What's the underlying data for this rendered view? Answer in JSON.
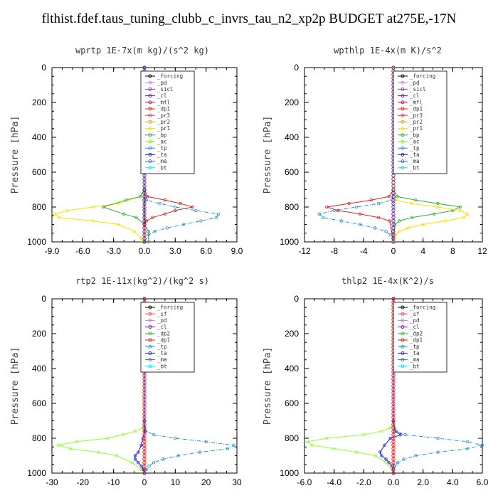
{
  "title": "flthist.fdef.taus_tuning_clubb_c_invrs_tau_n2_xp2p  BUDGET at275E,-17N",
  "colors": {
    "forcing": "#000000",
    "pd": "#c080e0",
    "sicl": "#8040c0",
    "cl": "#6020a0",
    "mfl": "#a01080",
    "dp1": "#e02020",
    "pr3": "#ff3030",
    "pr2": "#ff9900",
    "pr1": "#ffdd00",
    "bp": "#30b030",
    "ac": "#99e010",
    "tp": "#2090d0",
    "ta": "#2020e0",
    "ma": "#3070c0",
    "bt": "#00e0ff",
    "sf": "#ff4040",
    "dp2": "#30c030",
    "dp1b": "#90ff30"
  },
  "chart_data": [
    {
      "type": "line",
      "title": "wprtp  1E-7x(m kg)/(s^2 kg)",
      "ylabel": "Pressure [hPa]",
      "xlim": [
        -9,
        9
      ],
      "ylim": [
        1000,
        0
      ],
      "xticks": [
        -9,
        -6,
        -3,
        0,
        3,
        6,
        9
      ],
      "xtick_labels": [
        "-9.0",
        "-6.0",
        "-3.0",
        "0.0",
        "3.0",
        "6.0",
        "9.0"
      ],
      "yticks": [
        0,
        200,
        400,
        600,
        800,
        1000
      ],
      "ytick_labels": [
        "0",
        "200",
        "400",
        "600",
        "800",
        "1000"
      ],
      "legend": [
        "_forcing",
        "_pd",
        "_sicl",
        "_cl",
        "_mfl",
        "_dp1",
        "_pr3",
        "_pr2",
        "_pr1",
        "_bp",
        "_ac",
        "_tp",
        "_ta",
        "_ma",
        "_bt"
      ],
      "series": [
        {
          "key": "forcing",
          "p": [
            0,
            700,
            1000
          ],
          "x": [
            0,
            0,
            0
          ]
        },
        {
          "key": "pr1",
          "p": [
            0,
            700,
            740,
            780,
            800,
            820,
            840,
            860,
            880,
            900,
            940,
            980,
            1000
          ],
          "x": [
            0,
            0,
            -0.4,
            -2.5,
            -5.0,
            -7.5,
            -8.7,
            -8.3,
            -5.0,
            -2.5,
            -1.0,
            -0.3,
            -0.2
          ]
        },
        {
          "key": "bp",
          "p": [
            0,
            700,
            740,
            760,
            800,
            840,
            860,
            900,
            940,
            1000
          ],
          "x": [
            0,
            0,
            -0.4,
            -1.8,
            -4.0,
            -2.0,
            -0.8,
            0,
            0.4,
            0.4
          ]
        },
        {
          "key": "dp1",
          "p": [
            0,
            700,
            740,
            760,
            780,
            800,
            820,
            840,
            860,
            880,
            900,
            1000
          ],
          "x": [
            0,
            0,
            0.3,
            2.0,
            3.5,
            4.7,
            3.0,
            2.0,
            0.8,
            0.2,
            0,
            0
          ]
        },
        {
          "key": "tp",
          "p": [
            0,
            700,
            760,
            780,
            800,
            820,
            840,
            860,
            880,
            900,
            920,
            940,
            960,
            1000
          ],
          "x": [
            0,
            0,
            0.2,
            1.5,
            3.0,
            5.0,
            7.2,
            7.0,
            5.5,
            3.8,
            2.2,
            1.0,
            0.4,
            0
          ]
        }
      ]
    },
    {
      "type": "line",
      "title": "wpthlp  1E-4x(m K)/s^2",
      "ylabel": "Pressure [hPa]",
      "xlim": [
        -12,
        12
      ],
      "ylim": [
        1000,
        0
      ],
      "xticks": [
        -12,
        -8,
        -4,
        0,
        4,
        8,
        12
      ],
      "xtick_labels": [
        "-12",
        "-8",
        "-4",
        "0",
        "4",
        "8",
        "12"
      ],
      "yticks": [
        0,
        200,
        400,
        600,
        800,
        1000
      ],
      "ytick_labels": [
        "0",
        "200",
        "400",
        "600",
        "800",
        "1000"
      ],
      "legend": [
        "_forcing",
        "_pd",
        "_sicl",
        "_cl",
        "_mfl",
        "_dp1",
        "_pr3",
        "_pr2",
        "_pr1",
        "_bp",
        "_ac",
        "_tp",
        "_ta",
        "_ma",
        "_bt"
      ],
      "series": [
        {
          "key": "pd",
          "p": [
            0,
            700,
            1000
          ],
          "x": [
            0,
            0,
            0
          ]
        },
        {
          "key": "dp1",
          "p": [
            0,
            700,
            740,
            760,
            780,
            800,
            820,
            840,
            860,
            880,
            1000
          ],
          "x": [
            0,
            0,
            -0.6,
            -3.0,
            -6.0,
            -9.0,
            -7.5,
            -4.5,
            -2.0,
            -0.5,
            0
          ]
        },
        {
          "key": "tp",
          "p": [
            0,
            700,
            760,
            780,
            800,
            820,
            840,
            860,
            880,
            900,
            920,
            940,
            960,
            1000
          ],
          "x": [
            0,
            0,
            -0.2,
            -2.0,
            -5.0,
            -8.0,
            -10.0,
            -9.5,
            -7.0,
            -4.5,
            -2.5,
            -1.0,
            -0.4,
            0
          ]
        },
        {
          "key": "bp",
          "p": [
            0,
            700,
            740,
            760,
            780,
            800,
            820,
            840,
            860,
            880,
            900,
            1000
          ],
          "x": [
            0,
            0,
            0.5,
            3.0,
            6.0,
            9.0,
            8.0,
            5.5,
            2.5,
            0.8,
            0.2,
            0
          ]
        },
        {
          "key": "pr1",
          "p": [
            0,
            700,
            760,
            780,
            800,
            820,
            840,
            860,
            880,
            900,
            920,
            940,
            960,
            1000
          ],
          "x": [
            0,
            0,
            0.3,
            2.5,
            6.0,
            9.0,
            10.0,
            9.5,
            7.0,
            4.0,
            2.0,
            0.8,
            0.3,
            0
          ]
        }
      ]
    },
    {
      "type": "line",
      "title": "rtp2  1E-11x(kg^2)/(kg^2 s)",
      "ylabel": "Pressure [hPa]",
      "xlim": [
        -30,
        30
      ],
      "ylim": [
        1000,
        0
      ],
      "xticks": [
        -30,
        -20,
        -10,
        0,
        10,
        20,
        30
      ],
      "xtick_labels": [
        "-30",
        "-20",
        "-10",
        "0",
        "10",
        "20",
        "30"
      ],
      "yticks": [
        0,
        200,
        400,
        600,
        800,
        1000
      ],
      "ytick_labels": [
        "0",
        "200",
        "400",
        "600",
        "800",
        "1000"
      ],
      "legend": [
        "_forcing",
        "_sf",
        "_pd",
        "_cl",
        "_dp2",
        "_dp1",
        "_tp",
        "_ta",
        "_ma",
        "_bt"
      ],
      "series": [
        {
          "key": "sf",
          "p": [
            0,
            700,
            1000
          ],
          "x": [
            0,
            0,
            0
          ]
        },
        {
          "key": "dp1b",
          "p": [
            0,
            700,
            740,
            760,
            780,
            800,
            820,
            840,
            860,
            880,
            900,
            940,
            980,
            1000
          ],
          "x": [
            0,
            0,
            -0.5,
            -3.0,
            -7.0,
            -12.0,
            -22.0,
            -28.0,
            -24.0,
            -15.0,
            -9.0,
            -4.0,
            -1.0,
            0
          ]
        },
        {
          "key": "tp",
          "p": [
            0,
            700,
            760,
            780,
            800,
            820,
            840,
            860,
            880,
            900,
            920,
            940,
            960,
            980,
            1000
          ],
          "x": [
            0,
            0,
            0.5,
            3.0,
            10.0,
            20.0,
            29.0,
            27.0,
            18.0,
            11.0,
            6.0,
            3.0,
            1.5,
            0.6,
            0
          ]
        },
        {
          "key": "ta",
          "p": [
            0,
            700,
            760,
            800,
            840,
            880,
            900,
            920,
            940,
            960,
            980,
            1000
          ],
          "x": [
            0,
            0,
            0.2,
            -0.5,
            -1.0,
            -2.0,
            -3.0,
            -3.0,
            -2.0,
            -1.0,
            -0.3,
            0
          ]
        }
      ]
    },
    {
      "type": "line",
      "title": "thlp2  1E-4x(K^2)/s",
      "ylabel": "Pressure [hPa]",
      "xlim": [
        -6,
        6
      ],
      "ylim": [
        1000,
        0
      ],
      "xticks": [
        -6,
        -4,
        -2,
        0,
        2,
        4,
        6
      ],
      "xtick_labels": [
        "-6.0",
        "-4.0",
        "-2.0",
        "0.0",
        "2.0",
        "4.0",
        "6.0"
      ],
      "yticks": [
        0,
        200,
        400,
        600,
        800,
        1000
      ],
      "ytick_labels": [
        "0",
        "200",
        "400",
        "600",
        "800",
        "1000"
      ],
      "legend": [
        "_forcing",
        "_sf",
        "_pd",
        "_cl",
        "_dp2",
        "_dp1",
        "_tp",
        "_ta",
        "_ma",
        "_bt"
      ],
      "series": [
        {
          "key": "sf",
          "p": [
            0,
            700,
            1000
          ],
          "x": [
            0,
            0,
            0
          ]
        },
        {
          "key": "dp1b",
          "p": [
            0,
            700,
            740,
            760,
            780,
            800,
            820,
            840,
            860,
            880,
            900,
            940,
            980,
            1000
          ],
          "x": [
            0,
            0,
            -0.2,
            -0.8,
            -2.0,
            -4.5,
            -5.8,
            -5.5,
            -4.0,
            -2.5,
            -1.2,
            -0.5,
            -0.1,
            0
          ]
        },
        {
          "key": "tp",
          "p": [
            0,
            700,
            760,
            780,
            800,
            820,
            840,
            860,
            880,
            900,
            920,
            940,
            960,
            1000
          ],
          "x": [
            0,
            0,
            0.2,
            0.8,
            3.0,
            5.0,
            6.0,
            5.0,
            3.0,
            1.5,
            0.7,
            0.3,
            0.1,
            0
          ]
        },
        {
          "key": "ta",
          "p": [
            0,
            700,
            760,
            780,
            800,
            840,
            880,
            900,
            920,
            940,
            960,
            1000
          ],
          "x": [
            0,
            0,
            0.1,
            0.5,
            -0.2,
            -0.6,
            -0.9,
            -0.8,
            -0.5,
            -0.3,
            -0.1,
            0
          ]
        }
      ]
    }
  ]
}
